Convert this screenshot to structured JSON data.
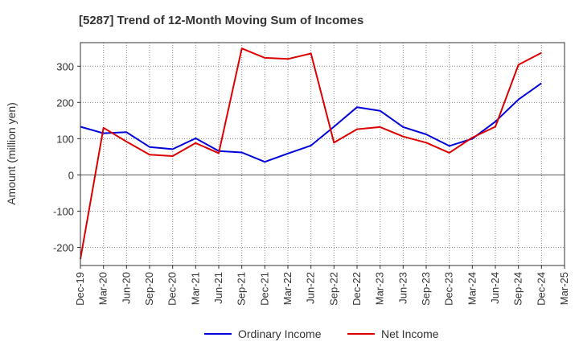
{
  "chart_data": {
    "type": "line",
    "title": "[5287]  Trend of 12-Month Moving Sum of Incomes",
    "xlabel": "",
    "ylabel": "Amount (million yen)",
    "ylim": [
      -250,
      365
    ],
    "yticks": [
      300,
      200,
      100,
      0,
      -100,
      -200
    ],
    "yticklabels": [
      "300",
      "200",
      "100",
      "0",
      "-100",
      "-200"
    ],
    "categories": [
      "Dec-19",
      "Mar-20",
      "Jun-20",
      "Sep-20",
      "Dec-20",
      "Mar-21",
      "Jun-21",
      "Sep-21",
      "Dec-21",
      "Mar-22",
      "Jun-22",
      "Sep-22",
      "Dec-22",
      "Mar-23",
      "Jun-23",
      "Sep-23",
      "Dec-23",
      "Mar-24",
      "Jun-24",
      "Sep-24",
      "Dec-24",
      "Mar-25"
    ],
    "grid": true,
    "legend_position": "bottom",
    "series": [
      {
        "name": "Ordinary Income",
        "color": "#0000dd",
        "values": [
          133,
          115,
          118,
          77,
          71,
          101,
          66,
          62,
          36,
          59,
          81,
          133,
          187,
          177,
          132,
          112,
          80,
          100,
          147,
          208,
          253,
          null
        ]
      },
      {
        "name": "Net Income",
        "color": "#dd0000",
        "values": [
          -232,
          130,
          92,
          56,
          52,
          88,
          60,
          349,
          323,
          320,
          335,
          89,
          126,
          132,
          106,
          89,
          61,
          103,
          133,
          304,
          337,
          null
        ]
      }
    ]
  }
}
